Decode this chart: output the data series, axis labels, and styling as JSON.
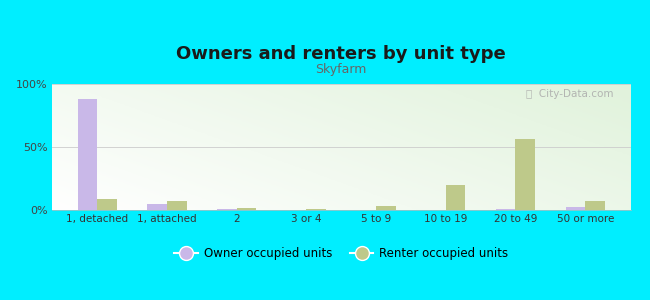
{
  "title": "Owners and renters by unit type",
  "subtitle": "Skyfarm",
  "categories": [
    "1, detached",
    "1, attached",
    "2",
    "3 or 4",
    "5 to 9",
    "10 to 19",
    "20 to 49",
    "50 or more"
  ],
  "owner_values": [
    88,
    5,
    1,
    0.3,
    0,
    0.3,
    1,
    2
  ],
  "renter_values": [
    9,
    7,
    1.5,
    0.5,
    3,
    20,
    56,
    7
  ],
  "owner_color": "#c9b8e8",
  "renter_color": "#bec98a",
  "background_color": "#00eeff",
  "title_fontsize": 13,
  "subtitle_fontsize": 9,
  "ylim": [
    0,
    100
  ],
  "yticks": [
    0,
    50,
    100
  ],
  "ytick_labels": [
    "0%",
    "50%",
    "100%"
  ],
  "legend_labels": [
    "Owner occupied units",
    "Renter occupied units"
  ],
  "watermark": "ⓘ  City-Data.com"
}
